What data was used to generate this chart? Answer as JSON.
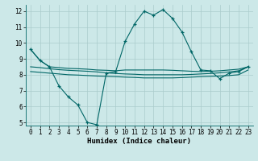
{
  "xlabel": "Humidex (Indice chaleur)",
  "xlim": [
    -0.5,
    23.5
  ],
  "ylim": [
    4.8,
    12.4
  ],
  "yticks": [
    5,
    6,
    7,
    8,
    9,
    10,
    11,
    12
  ],
  "xticks": [
    0,
    1,
    2,
    3,
    4,
    5,
    6,
    7,
    8,
    9,
    10,
    11,
    12,
    13,
    14,
    15,
    16,
    17,
    18,
    19,
    20,
    21,
    22,
    23
  ],
  "bg_color": "#cce8e8",
  "line_color": "#006666",
  "grid_color": "#aacccc",
  "line_main_x": [
    0,
    1,
    2,
    3,
    4,
    5,
    6,
    7,
    8,
    9,
    10,
    11,
    12,
    13,
    14,
    15,
    16,
    17,
    18,
    19,
    20,
    21,
    22,
    23
  ],
  "line_main_y": [
    9.6,
    8.9,
    8.5,
    7.3,
    6.6,
    6.1,
    5.0,
    4.85,
    8.1,
    8.2,
    10.1,
    11.2,
    12.0,
    11.75,
    12.1,
    11.55,
    10.7,
    9.45,
    8.3,
    8.25,
    7.75,
    8.1,
    8.2,
    8.5
  ],
  "line_upper_x": [
    0,
    1,
    2,
    3,
    4,
    5,
    6,
    7,
    8,
    9,
    10,
    11,
    12,
    13,
    14,
    15,
    16,
    17,
    18,
    19,
    20,
    21,
    22,
    23
  ],
  "line_upper_y": [
    9.6,
    8.9,
    8.5,
    8.45,
    8.4,
    8.38,
    8.35,
    8.3,
    8.28,
    8.25,
    8.3,
    8.3,
    8.3,
    8.3,
    8.3,
    8.28,
    8.25,
    8.22,
    8.2,
    8.22,
    8.25,
    8.3,
    8.35,
    8.5
  ],
  "line_mid_x": [
    0,
    1,
    2,
    3,
    4,
    5,
    6,
    7,
    8,
    9,
    10,
    11,
    12,
    13,
    14,
    15,
    16,
    17,
    18,
    19,
    20,
    21,
    22,
    23
  ],
  "line_mid_y": [
    8.5,
    8.45,
    8.38,
    8.32,
    8.28,
    8.25,
    8.22,
    8.18,
    8.12,
    8.08,
    8.05,
    8.03,
    8.0,
    8.0,
    8.0,
    8.0,
    8.0,
    8.02,
    8.05,
    8.08,
    8.12,
    8.18,
    8.25,
    8.5
  ],
  "line_lower_x": [
    0,
    1,
    2,
    3,
    4,
    5,
    6,
    7,
    8,
    9,
    10,
    11,
    12,
    13,
    14,
    15,
    16,
    17,
    18,
    19,
    20,
    21,
    22,
    23
  ],
  "line_lower_y": [
    8.2,
    8.15,
    8.1,
    8.05,
    8.0,
    7.98,
    7.95,
    7.92,
    7.9,
    7.88,
    7.85,
    7.83,
    7.8,
    7.8,
    7.8,
    7.8,
    7.82,
    7.85,
    7.88,
    7.9,
    7.92,
    7.95,
    8.0,
    8.3
  ],
  "marker_x": [
    0,
    1,
    2,
    3,
    4,
    5,
    6,
    7,
    8,
    9,
    10,
    11,
    12,
    13,
    14,
    15,
    16,
    17,
    18,
    19,
    20,
    21,
    22,
    23
  ],
  "marker_y": [
    9.6,
    8.9,
    8.5,
    7.3,
    6.6,
    6.1,
    5.0,
    4.85,
    8.1,
    8.2,
    10.1,
    11.2,
    12.0,
    11.75,
    12.1,
    11.55,
    10.7,
    9.45,
    8.3,
    8.25,
    7.75,
    8.1,
    8.2,
    8.5
  ]
}
